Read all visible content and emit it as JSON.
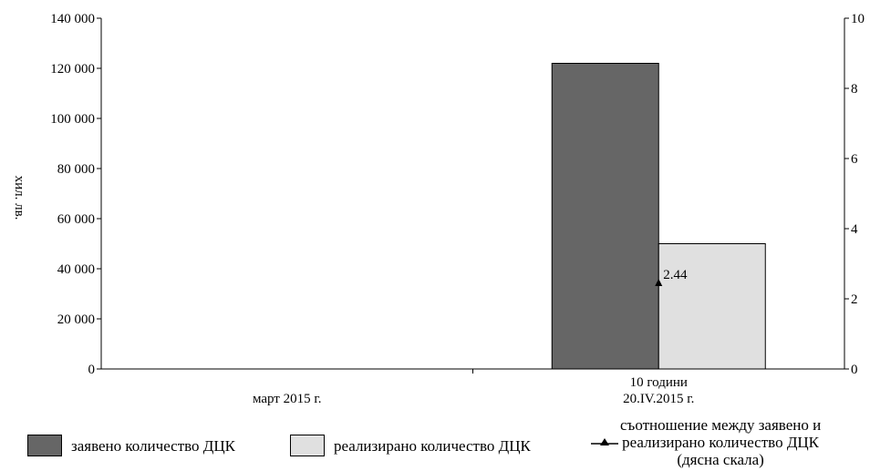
{
  "chart_data": {
    "type": "bar",
    "title": "",
    "ylabel": "хил. лв.",
    "ylim": [
      0,
      140000
    ],
    "yticks": [
      "0",
      "20 000",
      "40 000",
      "60 000",
      "80 000",
      "100 000",
      "120 000",
      "140 000"
    ],
    "y2lim": [
      0,
      10
    ],
    "y2ticks": [
      "0",
      "2",
      "4",
      "6",
      "8",
      "10"
    ],
    "categories": [
      "март 2015 г.",
      "10 години\n20.IV.2015 г."
    ],
    "series": [
      {
        "name": "заявено количество ДЦК",
        "axis": "left",
        "type": "bar",
        "color": "#666666",
        "values": [
          null,
          122000
        ]
      },
      {
        "name": "реализирано количество ДЦК",
        "axis": "left",
        "type": "bar",
        "color": "#e0e0e0",
        "values": [
          null,
          50000
        ]
      },
      {
        "name": "съотношение между заявено и\nреализирано количество ДЦК\n(дясна скала)",
        "axis": "right",
        "type": "line",
        "color": "#000000",
        "values": [
          null,
          2.44
        ],
        "data_labels": [
          null,
          "2.44"
        ]
      }
    ],
    "grid": false,
    "legend_position": "bottom"
  }
}
